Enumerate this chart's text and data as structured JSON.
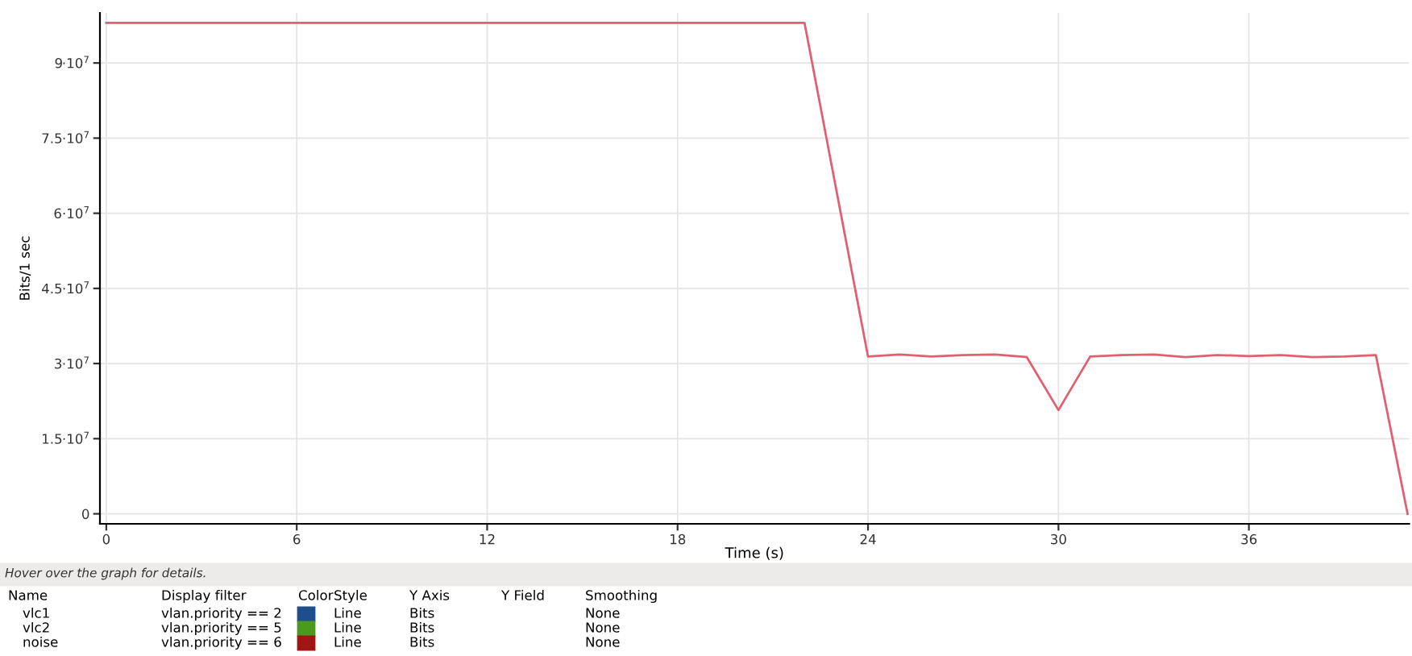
{
  "chart_data": {
    "type": "line",
    "xlabel": "Time (s)",
    "ylabel": "Bits/1 sec",
    "xlim": [
      -0.2,
      41.05
    ],
    "xticks": [
      0,
      6,
      12,
      18,
      24,
      30,
      36
    ],
    "ylim": [
      -2000000,
      100000000
    ],
    "yticks": [
      0,
      {
        "value": 15000000,
        "label": "1.5·10$^{7}$"
      },
      {
        "value": 30000000,
        "label": "3·10$^{7}$"
      },
      {
        "value": 45000000,
        "label": "4.5·10$^{7}$"
      },
      {
        "value": 60000000,
        "label": "6·10$^{7}$"
      },
      {
        "value": 75000000,
        "label": "7.5·10$^{7}$"
      },
      {
        "value": 90000000,
        "label": "9·10$^{7}$"
      }
    ],
    "grid": true,
    "marker": "none",
    "line_style": "solid",
    "series": [
      {
        "color": "#e06070",
        "x": [
          0,
          1,
          2,
          3,
          4,
          5,
          6,
          7,
          8,
          9,
          10,
          11,
          12,
          13,
          14,
          15,
          16,
          17,
          18,
          19,
          20,
          21,
          22,
          24,
          25,
          26,
          27,
          28,
          29,
          30,
          31,
          32,
          33,
          34,
          35,
          36,
          37,
          38,
          39,
          40,
          41
        ],
        "values": [
          98000000,
          98000000,
          98000000,
          98000000,
          98000000,
          98000000,
          98000000,
          98000000,
          98000000,
          98000000,
          98000000,
          98000000,
          98000000,
          98000000,
          98000000,
          98000000,
          98000000,
          98000000,
          98000000,
          98000000,
          98000000,
          98000000,
          98000000,
          31400000,
          31800000,
          31400000,
          31700000,
          31800000,
          31300000,
          20700000,
          31400000,
          31700000,
          31800000,
          31300000,
          31700000,
          31500000,
          31700000,
          31300000,
          31400000,
          31700000,
          0
        ]
      }
    ],
    "annotations": [
      "Hover over the graph for details.",
      "Name",
      "Display filter",
      "Color",
      "Style",
      "Y Axis",
      "Y Field",
      "Smoothing",
      "vlc1",
      "vlan.priority == 2",
      "Line",
      "Bits",
      "None",
      "vlc2",
      "vlan.priority == 5",
      "Line",
      "Bits",
      "None",
      "noise",
      "vlan.priority == 6",
      "Line",
      "Bits",
      "None"
    ]
  }
}
